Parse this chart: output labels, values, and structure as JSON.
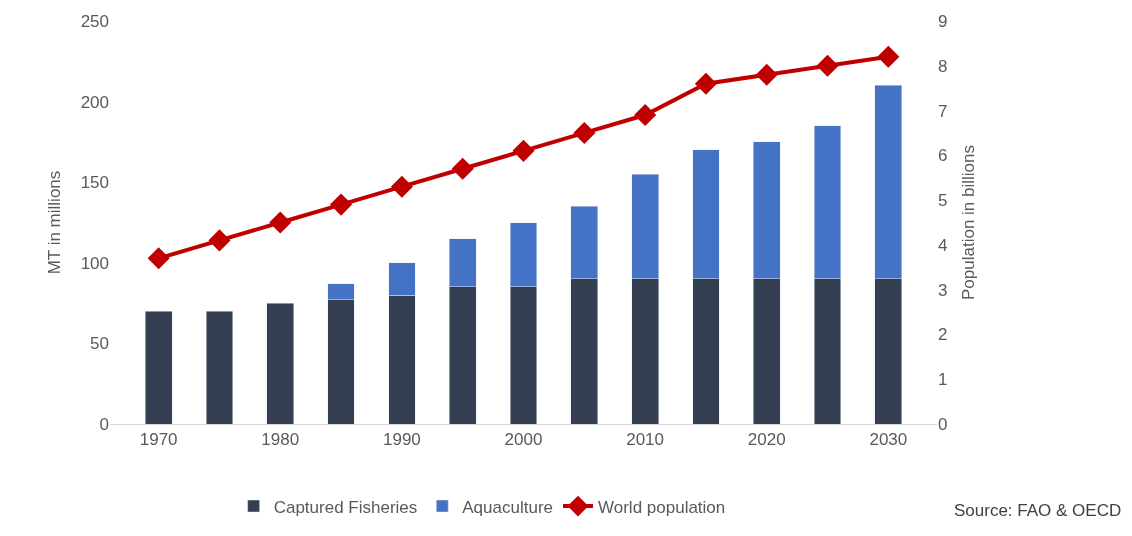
{
  "chart_data": {
    "type": "bar",
    "stacked": true,
    "ylabel": "MT in millions",
    "y2label": "Population in billions",
    "x": [
      1970,
      1975,
      1980,
      1985,
      1990,
      1995,
      2000,
      2005,
      2010,
      2015,
      2020,
      2025,
      2030
    ],
    "xlim": [
      1966,
      2034
    ],
    "xticks": [
      1970,
      1980,
      1990,
      2000,
      2010,
      2020,
      2030
    ],
    "ylim": [
      0,
      250
    ],
    "yticks": [
      0,
      50,
      100,
      150,
      200,
      250
    ],
    "y2lim": [
      0,
      9
    ],
    "y2ticks": [
      0,
      1,
      2,
      3,
      4,
      5,
      6,
      7,
      8,
      9
    ],
    "series": [
      {
        "name": "Captured Fisheries",
        "color": "#333f50",
        "values": [
          70,
          70,
          75,
          77,
          80,
          85,
          85,
          90,
          90,
          90,
          90,
          90,
          90
        ]
      },
      {
        "name": "Aquaculture",
        "color": "#4472c4",
        "values": [
          null,
          null,
          null,
          10,
          20,
          30,
          40,
          45,
          65,
          80,
          85,
          95,
          120
        ]
      },
      {
        "name": "World population",
        "type": "line",
        "axis": "y2",
        "color": "#c00000",
        "marker": "diamond",
        "values": [
          3.7,
          4.1,
          4.5,
          4.9,
          5.3,
          5.7,
          6.1,
          6.5,
          6.9,
          7.6,
          7.8,
          8.0,
          8.2
        ]
      }
    ],
    "legend": "bottom",
    "annotations": [
      "Source: FAO & OECD"
    ]
  }
}
